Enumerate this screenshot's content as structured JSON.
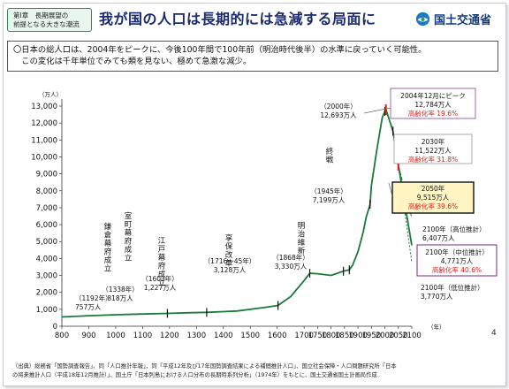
{
  "header": {
    "chapter_line1": "第Ⅰ章　長期展望の",
    "chapter_line2": "前提となる大きな潮流",
    "title": "我が国の人口は長期的には急減する局面に",
    "logo_text": "国土交通省"
  },
  "summary": {
    "line1": "〇日本の総人口は、2004年をピークに、今後100年間で100年前（明治時代後半）の水準に戻っていく可能性。",
    "line2": "　この変化は千年単位でみても類を見ない、極めて急激な減少。"
  },
  "chart_data": {
    "type": "line",
    "ylabel": "（万人）",
    "xunit": "（年）",
    "xlim": [
      800,
      2100
    ],
    "ylim": [
      0,
      13000
    ],
    "xticks": [
      800,
      900,
      1000,
      1100,
      1200,
      1300,
      1400,
      1500,
      1600,
      1700,
      1750,
      1800,
      1850,
      1900,
      1950,
      2000,
      2050,
      2100
    ],
    "yticks": [
      0,
      1000,
      2000,
      3000,
      4000,
      5000,
      6000,
      7000,
      8000,
      9000,
      10000,
      11000,
      12000,
      13000
    ],
    "history": {
      "x": [
        800,
        900,
        1000,
        1100,
        1192,
        1280,
        1338,
        1450,
        1550,
        1603,
        1650,
        1700,
        1721,
        1750,
        1800,
        1846,
        1868,
        1880,
        1900,
        1920,
        1930,
        1945,
        1950,
        1970,
        1990,
        2000,
        2004
      ],
      "y": [
        550,
        620,
        680,
        720,
        757,
        800,
        818,
        900,
        1100,
        1227,
        1750,
        2700,
        3128,
        3100,
        3000,
        3250,
        3330,
        3600,
        4400,
        5600,
        6400,
        7199,
        8300,
        10400,
        12300,
        12693,
        12784
      ]
    },
    "projections": [
      {
        "x": [
          2004,
          2030,
          2050,
          2100
        ],
        "y": [
          12784,
          11522,
          9515,
          6407
        ]
      },
      {
        "x": [
          2004,
          2030,
          2050,
          2100
        ],
        "y": [
          12784,
          11522,
          9515,
          4771
        ]
      },
      {
        "x": [
          2004,
          2030,
          2050,
          2100
        ],
        "y": [
          12784,
          11522,
          9515,
          3770
        ]
      }
    ],
    "ticks_marks": [
      1192,
      1338,
      1603,
      1721,
      1846,
      1868,
      1945,
      2000,
      2004,
      2030,
      2050
    ],
    "annotations": {
      "kamakura": [
        "鎌",
        "倉",
        "幕",
        "府",
        "成",
        "立"
      ],
      "kamakura_val": [
        "（1192年）",
        "757万人"
      ],
      "muromachi": [
        "室",
        "町",
        "幕",
        "府",
        "成",
        "立"
      ],
      "muromachi_val": [
        "（1338年）",
        "818万人"
      ],
      "edo": [
        "江",
        "戸",
        "幕",
        "府",
        "成",
        "立"
      ],
      "edo_val": [
        "（1603年）",
        "1,227万人"
      ],
      "kyoho": [
        "享",
        "保",
        "改",
        "革"
      ],
      "kyoho_val": [
        "（1716～45年）",
        "3,128万人"
      ],
      "meiji": [
        "明",
        "治",
        "維",
        "新"
      ],
      "meiji_val": [
        "（1868年）",
        "3,330万人"
      ],
      "shusen": [
        "終",
        "戦"
      ],
      "shusen_val": [
        "（1945年）",
        "7,199万人"
      ],
      "y2000": [
        "（2000年）",
        "12,693万人"
      ],
      "peak": [
        "2004年12月にピーク",
        "12,784万人",
        "高齢化率 19.6%"
      ],
      "p2030": [
        "2030年",
        "11,522万人",
        "高齢化率 31.8%"
      ],
      "p2050": [
        "2050年",
        "9,515万人",
        "高齢化率 39.6%"
      ],
      "high": [
        "2100年（高位推計）",
        "6,407万人"
      ],
      "mid": [
        "2100年（中位推計）",
        "4,771万人",
        "高齢化率 40.6%"
      ],
      "low": [
        "2100年（低位推計）",
        "3,770万人"
      ]
    },
    "colors": {
      "line": "#1a7a3a",
      "marker": "#e02020",
      "aging": "#e02020",
      "box": "#7a2a8a",
      "box2050_bg": "#fff4c2"
    }
  },
  "page_number": "4",
  "footer": {
    "line1": "（出典）総務省「国勢調査報告」、同「人口推計年報」、同「平成12年及び17年国勢調査結果による補間推計人口」、国立社会保障・人口問題研究所「日本",
    "line2": "の将来推計人口（平成18年12月推計）」、国土庁「日本列島における人口分布の長期時系列分析」（1974年）をもとに、国土交通省国土計画局作成"
  }
}
